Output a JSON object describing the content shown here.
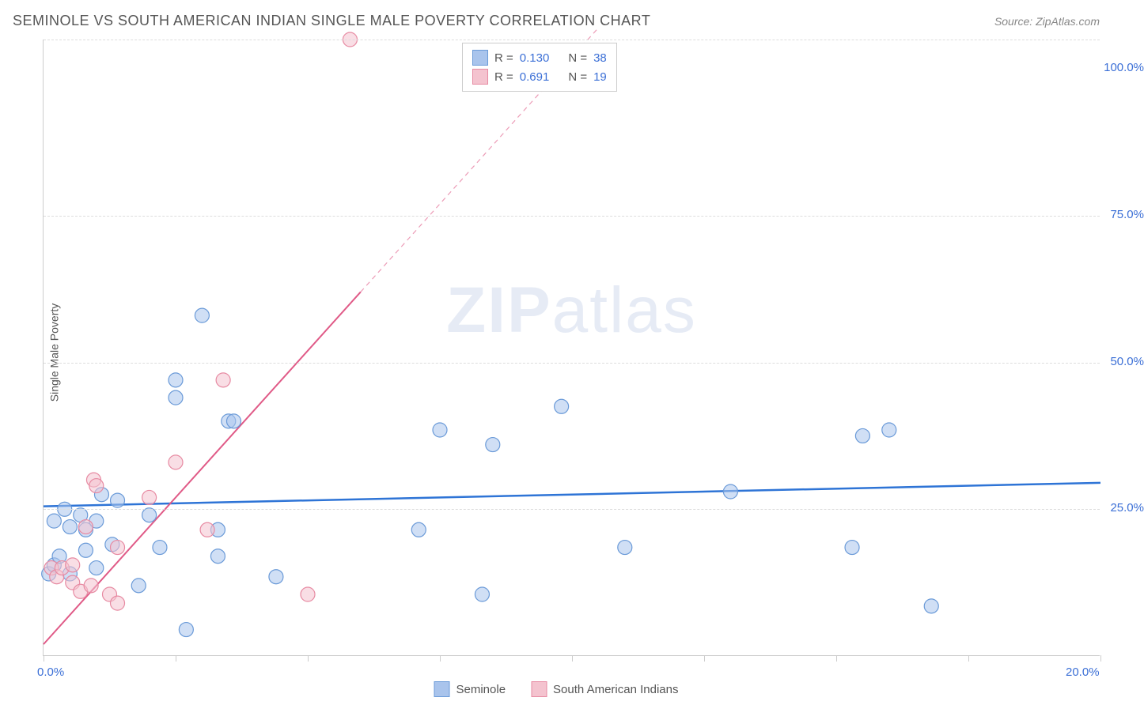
{
  "title": "SEMINOLE VS SOUTH AMERICAN INDIAN SINGLE MALE POVERTY CORRELATION CHART",
  "source": "Source: ZipAtlas.com",
  "ylabel": "Single Male Poverty",
  "watermark_zip": "ZIP",
  "watermark_atlas": "atlas",
  "chart": {
    "type": "scatter",
    "xlim": [
      0,
      20
    ],
    "ylim": [
      0,
      105
    ],
    "x_ticks": [
      0,
      2.5,
      5,
      7.5,
      10,
      12.5,
      15,
      17.5,
      20
    ],
    "x_tick_labels": {
      "0": "0.0%",
      "20": "20.0%"
    },
    "y_gridlines": [
      25,
      50,
      75,
      105
    ],
    "y_tick_labels": {
      "25": "25.0%",
      "50": "50.0%",
      "75": "75.0%",
      "100": "100.0%"
    },
    "background_color": "#ffffff",
    "grid_color": "#dddddd",
    "marker_radius": 9,
    "marker_opacity": 0.55,
    "series": [
      {
        "name": "Seminole",
        "color_fill": "#a9c4ec",
        "color_stroke": "#6a9ad8",
        "R": "0.130",
        "N": "38",
        "regression": {
          "x1": 0,
          "y1": 25.5,
          "x2": 20,
          "y2": 29.5,
          "color": "#2e74d6",
          "width": 2.5,
          "dash": "none"
        },
        "points": [
          [
            0.1,
            14
          ],
          [
            0.2,
            15.5
          ],
          [
            0.2,
            23
          ],
          [
            0.3,
            17
          ],
          [
            0.4,
            25
          ],
          [
            0.5,
            22
          ],
          [
            0.5,
            14
          ],
          [
            0.7,
            24
          ],
          [
            0.8,
            18
          ],
          [
            0.8,
            21.5
          ],
          [
            1.0,
            23
          ],
          [
            1.0,
            15
          ],
          [
            1.1,
            27.5
          ],
          [
            1.3,
            19
          ],
          [
            1.4,
            26.5
          ],
          [
            1.8,
            12
          ],
          [
            2.0,
            24
          ],
          [
            2.2,
            18.5
          ],
          [
            2.5,
            47
          ],
          [
            2.5,
            44
          ],
          [
            2.7,
            4.5
          ],
          [
            3.0,
            58
          ],
          [
            3.3,
            17
          ],
          [
            3.3,
            21.5
          ],
          [
            3.5,
            40
          ],
          [
            3.6,
            40
          ],
          [
            4.4,
            13.5
          ],
          [
            7.1,
            21.5
          ],
          [
            7.5,
            38.5
          ],
          [
            8.3,
            10.5
          ],
          [
            8.5,
            36
          ],
          [
            9.8,
            42.5
          ],
          [
            11.0,
            18.5
          ],
          [
            13.0,
            28.0
          ],
          [
            15.3,
            18.5
          ],
          [
            15.5,
            37.5
          ],
          [
            16.0,
            38.5
          ],
          [
            16.8,
            8.5
          ]
        ]
      },
      {
        "name": "South American Indians",
        "color_fill": "#f4c3cf",
        "color_stroke": "#e78aa2",
        "R": "0.691",
        "N": "19",
        "regression": {
          "x1": 0,
          "y1": 2,
          "x2": 6.0,
          "y2": 62,
          "color": "#e05a87",
          "width": 2,
          "dash_extend": {
            "x2": 10.5,
            "y2": 107
          }
        },
        "points": [
          [
            0.15,
            15
          ],
          [
            0.25,
            13.5
          ],
          [
            0.35,
            15
          ],
          [
            0.55,
            12.5
          ],
          [
            0.55,
            15.5
          ],
          [
            0.7,
            11
          ],
          [
            0.8,
            22
          ],
          [
            0.9,
            12
          ],
          [
            0.95,
            30
          ],
          [
            1.0,
            29
          ],
          [
            1.25,
            10.5
          ],
          [
            1.4,
            9
          ],
          [
            1.4,
            18.5
          ],
          [
            2.0,
            27
          ],
          [
            2.5,
            33
          ],
          [
            3.1,
            21.5
          ],
          [
            3.4,
            47
          ],
          [
            5.0,
            10.5
          ],
          [
            5.8,
            105
          ]
        ]
      }
    ]
  },
  "stats_labels": {
    "R": "R =",
    "N": "N ="
  },
  "legend": {
    "series1": "Seminole",
    "series2": "South American Indians"
  }
}
